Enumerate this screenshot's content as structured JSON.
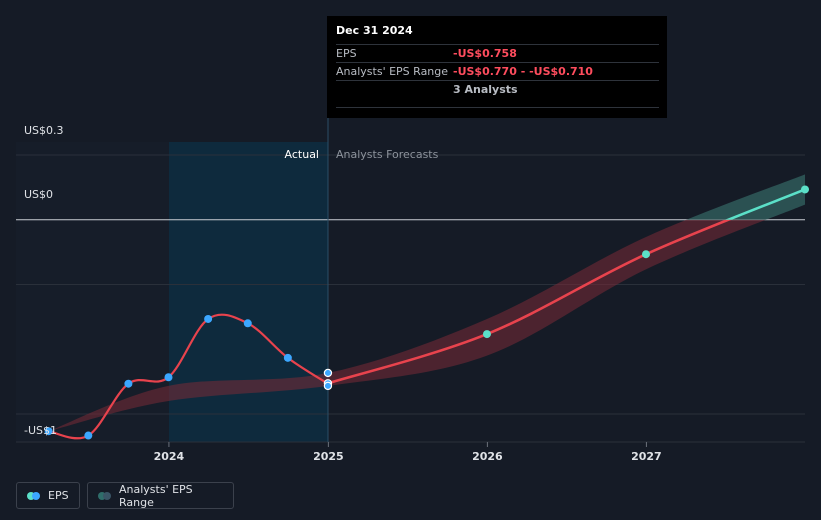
{
  "chart_data": {
    "type": "line",
    "title": "",
    "xlabel": "",
    "ylabel": "",
    "x_ticks": [
      "2024",
      "2025",
      "2026",
      "2027"
    ],
    "y_labels": [
      "US$0.3",
      "US$0",
      "-US$1"
    ],
    "region_labels": {
      "actual": "Actual",
      "forecast": "Analysts Forecasts"
    },
    "series": [
      {
        "name": "EPS",
        "kind": "actual",
        "x": [
          "2023-03-31",
          "2023-06-30",
          "2023-09-30",
          "2023-12-31",
          "2024-03-31",
          "2024-06-30",
          "2024-09-30",
          "2024-12-31"
        ],
        "y": [
          -0.98,
          -1.0,
          -0.76,
          -0.73,
          -0.46,
          -0.48,
          -0.64,
          -0.76
        ]
      },
      {
        "name": "EPS",
        "kind": "forecast",
        "x": [
          "2024-12-31",
          "2025-12-31",
          "2026-12-31",
          "2027-12-31"
        ],
        "y": [
          -0.758,
          -0.53,
          -0.16,
          0.14
        ]
      },
      {
        "name": "Analysts' EPS Range",
        "kind": "range",
        "x": [
          "2023-03-31",
          "2023-12-31",
          "2024-12-31",
          "2025-12-31",
          "2026-12-31",
          "2027-12-31"
        ],
        "low": [
          -0.98,
          -0.84,
          -0.77,
          -0.63,
          -0.23,
          0.07
        ],
        "high": [
          -0.98,
          -0.77,
          -0.71,
          -0.46,
          -0.08,
          0.21
        ]
      }
    ],
    "highlight_points": [
      {
        "x": "2024-12-31",
        "y": -0.71
      },
      {
        "x": "2024-12-31",
        "y": -0.758
      },
      {
        "x": "2024-12-31",
        "y": -0.77
      }
    ],
    "ylim": [
      -1.03,
      0.36
    ],
    "grid": true,
    "colors": {
      "background": "#151b26",
      "actual_shade": "#0e2a3d",
      "eps_line": "#e8434d",
      "eps_line_positive": "#5be0c8",
      "range_band": "#7a2a36",
      "range_band_positive": "#2f5a5a",
      "point_actual": "#3ca7ff",
      "point_forecast": "#5be0c8"
    }
  },
  "tooltip": {
    "date": "Dec 31 2024",
    "rows": [
      {
        "label": "EPS",
        "value": "-US$0.758"
      },
      {
        "label": "Analysts' EPS Range",
        "value": "-US$0.770 - -US$0.710"
      },
      {
        "label": "",
        "value": "3 Analysts"
      }
    ]
  },
  "legend": {
    "eps_label": "EPS",
    "range_label": "Analysts' EPS Range"
  }
}
